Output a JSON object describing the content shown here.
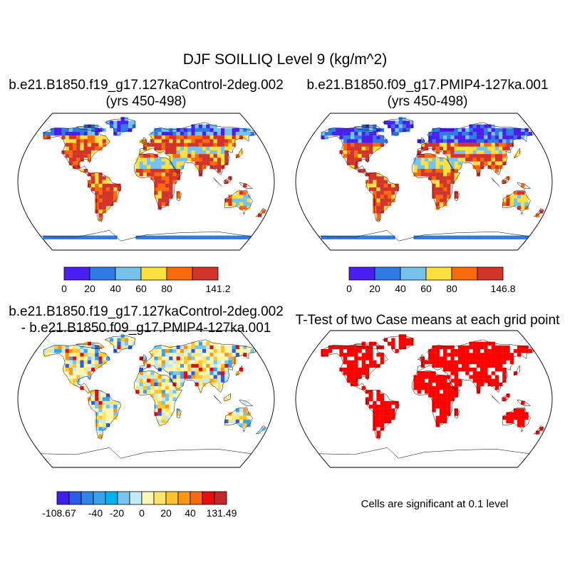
{
  "title": "DJF SOILLIQ Level 9 (kg/m^2)",
  "panels": {
    "case1": {
      "line1": "b.e21.B1850.f19_g17.127kaControl-2deg.002",
      "line2": "(yrs 450-498)"
    },
    "case2": {
      "line1": "b.e21.B1850.f09_g17.PMIP4-127ka.001",
      "line2": "(yrs 450-498)"
    },
    "difference": {
      "line1": "b.e21.B1850.f19_g17.127kaControl-2deg.002",
      "line2": "- b.e21.B1850.f09_g17.PMIP4-127ka.001"
    },
    "ttest": {
      "title": "T-Test of two Case means at each grid point",
      "note": "Cells are significant at 0.1 level"
    }
  },
  "colorbars": {
    "case1": {
      "colors": [
        "#4a1ef0",
        "#2f7be6",
        "#75c2ed",
        "#fbe040",
        "#fa6a0a",
        "#d2332b"
      ],
      "labels": [
        "0",
        "20",
        "40",
        "60",
        "80",
        "",
        "141.2"
      ]
    },
    "case2": {
      "colors": [
        "#4a1ef0",
        "#2f7be6",
        "#75c2ed",
        "#fbe040",
        "#fa6a0a",
        "#d2332b"
      ],
      "labels": [
        "0",
        "20",
        "40",
        "60",
        "80",
        "",
        "146.8"
      ]
    },
    "difference": {
      "colors": [
        "#3e1ff0",
        "#2a5ee8",
        "#2f86e6",
        "#38a3ea",
        "#00b3f0",
        "#78c6ee",
        "#c4e8f4",
        "#fdf5b3",
        "#fde56a",
        "#fdc52d",
        "#fb9611",
        "#f86a0d",
        "#e90c0c",
        "#c5262b"
      ],
      "labels": [
        "-108.67",
        "-40",
        "-20",
        "0",
        "20",
        "40",
        "131.49"
      ],
      "label_edges": [
        0,
        3,
        5,
        7,
        9,
        11,
        14
      ]
    },
    "significance_color": "#ff0000"
  },
  "palettes": {
    "land_seq": [
      "#d2332b",
      "#fa6a0a",
      "#fbe040",
      "#75c2ed",
      "#2f7be6",
      "#4a1ef0"
    ],
    "land_div": [
      "#fdf5b3",
      "#c4e8f4",
      "#fde56a",
      "#78c6ee",
      "#fdc52d",
      "#fb9611",
      "#38a3ea",
      "#e90c0c",
      "#2a5ee8"
    ]
  }
}
